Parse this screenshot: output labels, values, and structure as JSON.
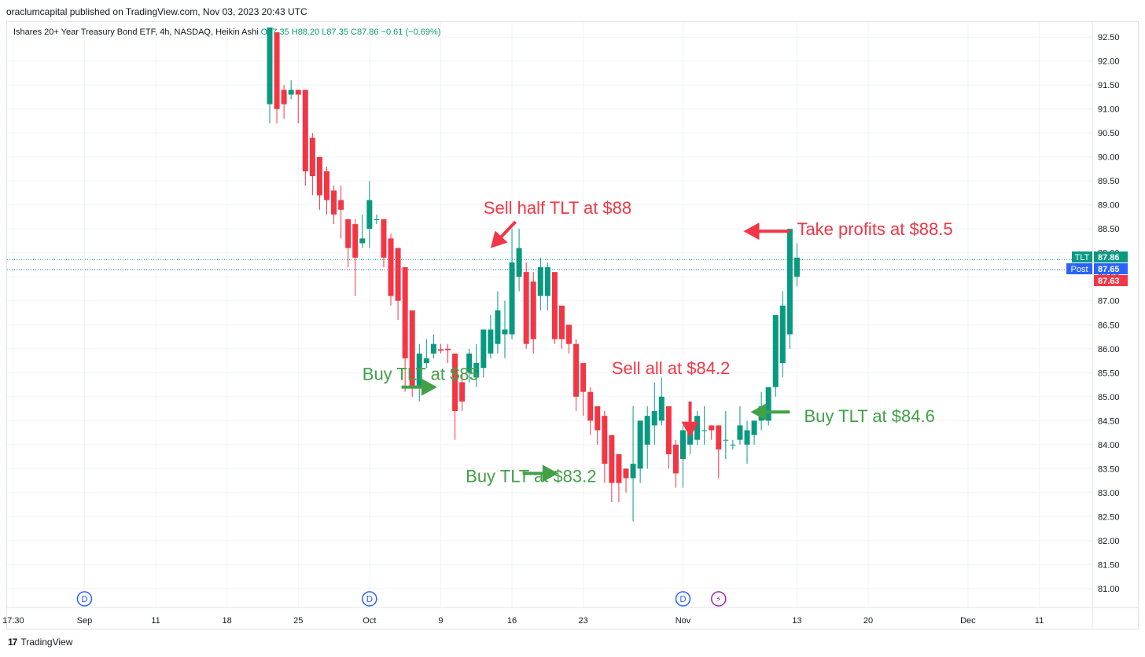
{
  "publisher_line": "oraclumcapital published on TradingView.com, Nov 03, 2023 20:43 UTC",
  "symbol": {
    "name": "Ishares 20+ Year Treasury Bond ETF, 4h, NASDAQ, Heikin Ashi",
    "open": "O87.35",
    "high": "H88.20",
    "low": "L87.35",
    "close": "C87.86",
    "change": "−0.61 (−0.69%)"
  },
  "footer": {
    "logo_mark": "17",
    "brand": "TradingView"
  },
  "colors": {
    "up": "#089981",
    "down": "#f23645",
    "buy_note": "#43a047",
    "sell_note": "#f23645",
    "last_price": "#089981",
    "post_market": "#2962ff"
  },
  "chart_data": {
    "type": "candlestick",
    "style": "Heikin Ashi",
    "interval": "4h",
    "ylim": [
      80.8,
      92.7
    ],
    "y_ticks": [
      "81.00",
      "81.50",
      "82.00",
      "82.50",
      "83.00",
      "83.50",
      "84.00",
      "84.50",
      "85.00",
      "85.50",
      "86.00",
      "86.50",
      "87.00",
      "87.50",
      "88.00",
      "88.50",
      "89.00",
      "89.50",
      "90.00",
      "90.50",
      "91.00",
      "91.50",
      "92.00",
      "92.50"
    ],
    "x_ticks": [
      {
        "label": "17:30",
        "slot": -36
      },
      {
        "label": "Sep",
        "slot": -26
      },
      {
        "label": "11",
        "slot": -16
      },
      {
        "label": "18",
        "slot": -6
      },
      {
        "label": "25",
        "slot": 4
      },
      {
        "label": "Oct",
        "slot": 14
      },
      {
        "label": "9",
        "slot": 24
      },
      {
        "label": "16",
        "slot": 34
      },
      {
        "label": "23",
        "slot": 44
      },
      {
        "label": "Nov",
        "slot": 58
      },
      {
        "label": "13",
        "slot": 74
      },
      {
        "label": "20",
        "slot": 84
      },
      {
        "label": "Dec",
        "slot": 98
      },
      {
        "label": "11",
        "slot": 108
      }
    ],
    "events": [
      {
        "symbol": "D",
        "slot": -26,
        "kind": "dividend"
      },
      {
        "symbol": "D",
        "slot": 14,
        "kind": "dividend"
      },
      {
        "symbol": "D",
        "slot": 58,
        "kind": "dividend"
      },
      {
        "symbol": "⚡",
        "slot": 63,
        "kind": "earnings"
      }
    ],
    "candles": [
      {
        "o": 91.1,
        "h": 92.7,
        "l": 90.7,
        "c": 92.7
      },
      {
        "o": 92.6,
        "h": 92.6,
        "l": 90.7,
        "c": 91.0
      },
      {
        "o": 91.4,
        "h": 91.5,
        "l": 90.8,
        "c": 91.1
      },
      {
        "o": 91.3,
        "h": 91.6,
        "l": 91.2,
        "c": 91.4
      },
      {
        "o": 91.4,
        "h": 91.4,
        "l": 90.7,
        "c": 91.3
      },
      {
        "o": 91.4,
        "h": 91.4,
        "l": 89.4,
        "c": 89.7
      },
      {
        "o": 90.4,
        "h": 90.5,
        "l": 89.2,
        "c": 89.6
      },
      {
        "o": 90.0,
        "h": 90.0,
        "l": 88.9,
        "c": 89.2
      },
      {
        "o": 89.7,
        "h": 89.8,
        "l": 88.8,
        "c": 89.1
      },
      {
        "o": 89.3,
        "h": 89.4,
        "l": 88.6,
        "c": 88.8
      },
      {
        "o": 89.1,
        "h": 89.4,
        "l": 88.3,
        "c": 88.9
      },
      {
        "o": 88.7,
        "h": 88.7,
        "l": 87.7,
        "c": 88.1
      },
      {
        "o": 88.6,
        "h": 88.7,
        "l": 87.1,
        "c": 87.9
      },
      {
        "o": 88.2,
        "h": 88.8,
        "l": 88.1,
        "c": 88.3
      },
      {
        "o": 88.5,
        "h": 89.5,
        "l": 88.1,
        "c": 89.1
      },
      {
        "o": 88.7,
        "h": 88.8,
        "l": 88.6,
        "c": 88.7
      },
      {
        "o": 88.7,
        "h": 88.7,
        "l": 87.7,
        "c": 87.9
      },
      {
        "o": 88.3,
        "h": 88.4,
        "l": 86.9,
        "c": 87.1
      },
      {
        "o": 88.1,
        "h": 88.1,
        "l": 86.6,
        "c": 87.0
      },
      {
        "o": 87.7,
        "h": 87.7,
        "l": 85.1,
        "c": 85.8
      },
      {
        "o": 86.8,
        "h": 86.8,
        "l": 85.0,
        "c": 85.2
      },
      {
        "o": 85.2,
        "h": 86.1,
        "l": 84.9,
        "c": 85.9
      },
      {
        "o": 85.7,
        "h": 86.2,
        "l": 85.6,
        "c": 85.8
      },
      {
        "o": 85.9,
        "h": 86.3,
        "l": 85.8,
        "c": 86.1
      },
      {
        "o": 85.99,
        "h": 86.1,
        "l": 85.9,
        "c": 85.96
      },
      {
        "o": 86.0,
        "h": 86.1,
        "l": 85.7,
        "c": 85.97
      },
      {
        "o": 85.9,
        "h": 85.9,
        "l": 84.1,
        "c": 84.7
      },
      {
        "o": 85.3,
        "h": 85.5,
        "l": 84.7,
        "c": 84.9
      },
      {
        "o": 85.5,
        "h": 86.0,
        "l": 85.3,
        "c": 85.9
      },
      {
        "o": 85.4,
        "h": 86.1,
        "l": 85.2,
        "c": 85.7
      },
      {
        "o": 85.6,
        "h": 86.4,
        "l": 85.4,
        "c": 86.4
      },
      {
        "o": 85.9,
        "h": 86.7,
        "l": 85.8,
        "c": 86.4
      },
      {
        "o": 86.1,
        "h": 87.2,
        "l": 85.9,
        "c": 86.8
      },
      {
        "o": 86.3,
        "h": 87.0,
        "l": 85.8,
        "c": 86.4
      },
      {
        "o": 86.3,
        "h": 88.5,
        "l": 86.2,
        "c": 87.8
      },
      {
        "o": 87.5,
        "h": 88.5,
        "l": 87.2,
        "c": 88.1
      },
      {
        "o": 87.6,
        "h": 87.8,
        "l": 86.0,
        "c": 86.1
      },
      {
        "o": 87.4,
        "h": 87.6,
        "l": 85.9,
        "c": 86.2
      },
      {
        "o": 87.1,
        "h": 87.9,
        "l": 86.8,
        "c": 87.7
      },
      {
        "o": 87.1,
        "h": 87.8,
        "l": 86.8,
        "c": 87.7
      },
      {
        "o": 87.6,
        "h": 87.6,
        "l": 86.1,
        "c": 86.2
      },
      {
        "o": 86.9,
        "h": 86.9,
        "l": 86.0,
        "c": 86.2
      },
      {
        "o": 86.5,
        "h": 86.5,
        "l": 85.9,
        "c": 86.1
      },
      {
        "o": 86.1,
        "h": 86.2,
        "l": 84.7,
        "c": 85.0
      },
      {
        "o": 85.7,
        "h": 85.7,
        "l": 84.6,
        "c": 85.1
      },
      {
        "o": 85.1,
        "h": 85.2,
        "l": 84.2,
        "c": 84.5
      },
      {
        "o": 84.8,
        "h": 84.8,
        "l": 84.0,
        "c": 84.3
      },
      {
        "o": 84.6,
        "h": 84.7,
        "l": 83.2,
        "c": 83.6
      },
      {
        "o": 84.2,
        "h": 84.2,
        "l": 82.8,
        "c": 83.2
      },
      {
        "o": 83.8,
        "h": 83.8,
        "l": 82.8,
        "c": 83.2
      },
      {
        "o": 83.5,
        "h": 83.5,
        "l": 83.0,
        "c": 83.3
      },
      {
        "o": 83.3,
        "h": 84.8,
        "l": 82.4,
        "c": 83.6
      },
      {
        "o": 83.5,
        "h": 84.5,
        "l": 83.2,
        "c": 84.5
      },
      {
        "o": 84.0,
        "h": 84.8,
        "l": 83.5,
        "c": 84.6
      },
      {
        "o": 84.4,
        "h": 85.3,
        "l": 84.0,
        "c": 84.7
      },
      {
        "o": 84.5,
        "h": 85.4,
        "l": 84.4,
        "c": 85.0
      },
      {
        "o": 84.8,
        "h": 84.8,
        "l": 83.5,
        "c": 83.8
      },
      {
        "o": 84.0,
        "h": 84.1,
        "l": 83.1,
        "c": 83.4
      },
      {
        "o": 83.7,
        "h": 84.4,
        "l": 83.1,
        "c": 84.3
      },
      {
        "o": 84.0,
        "h": 84.7,
        "l": 83.8,
        "c": 84.3
      },
      {
        "o": 84.1,
        "h": 84.7,
        "l": 84.0,
        "c": 84.6
      },
      {
        "o": 84.3,
        "h": 84.8,
        "l": 84.0,
        "c": 84.3
      },
      {
        "o": 84.4,
        "h": 84.4,
        "l": 84.1,
        "c": 84.3
      },
      {
        "o": 84.4,
        "h": 84.4,
        "l": 83.3,
        "c": 83.9
      },
      {
        "o": 84.1,
        "h": 84.7,
        "l": 83.7,
        "c": 84.1
      },
      {
        "o": 84.0,
        "h": 84.1,
        "l": 83.9,
        "c": 84.0
      },
      {
        "o": 84.1,
        "h": 84.8,
        "l": 84.0,
        "c": 84.4
      },
      {
        "o": 84.0,
        "h": 84.5,
        "l": 83.6,
        "c": 84.3
      },
      {
        "o": 84.2,
        "h": 84.5,
        "l": 84.0,
        "c": 84.5
      },
      {
        "o": 84.5,
        "h": 85.1,
        "l": 84.3,
        "c": 84.8
      },
      {
        "o": 84.5,
        "h": 85.2,
        "l": 84.4,
        "c": 85.2
      },
      {
        "o": 85.2,
        "h": 86.7,
        "l": 85.0,
        "c": 86.7
      },
      {
        "o": 85.7,
        "h": 87.2,
        "l": 85.4,
        "c": 86.9
      },
      {
        "o": 86.3,
        "h": 88.5,
        "l": 86.0,
        "c": 88.5
      },
      {
        "o": 87.5,
        "h": 88.2,
        "l": 87.3,
        "c": 87.9
      }
    ],
    "price_lines": [
      {
        "label": "TLT",
        "value": "87.86",
        "price": 87.86,
        "color": "#089981",
        "style": "dotted"
      },
      {
        "label": "Post",
        "value": "87.65",
        "price": 87.65,
        "color": "#2962ff",
        "style": "dotted"
      },
      {
        "label": "",
        "value": "87.63",
        "price": 87.63,
        "color": "#f23645",
        "style": "none"
      }
    ],
    "annotations": [
      {
        "text": "Sell half TLT at $88",
        "kind": "sell",
        "text_slot": 30,
        "text_price": 88.95,
        "arrow_from_slot": 34.5,
        "arrow_from_price": 88.65,
        "arrow_to_slot": 31,
        "arrow_to_price": 88.1
      },
      {
        "text": "Take profits at $88.5",
        "kind": "sell",
        "text_slot": 74,
        "text_price": 88.5,
        "arrow_from_slot": 73,
        "arrow_from_price": 88.45,
        "arrow_to_slot": 66.5,
        "arrow_to_price": 88.45
      },
      {
        "text": "Sell all at $84.2",
        "kind": "sell",
        "text_slot": 48,
        "text_price": 85.6,
        "arrow_from_slot": 59,
        "arrow_from_price": 84.9,
        "arrow_to_slot": 59,
        "arrow_to_price": 84.15
      },
      {
        "text": "Buy TLT at $85",
        "kind": "buy",
        "text_slot": 13,
        "text_price": 85.48,
        "arrow_from_slot": 18.5,
        "arrow_from_price": 85.2,
        "arrow_to_slot": 23.5,
        "arrow_to_price": 85.2
      },
      {
        "text": "Buy TLT at $84.6",
        "kind": "buy",
        "text_slot": 75,
        "text_price": 84.6,
        "arrow_from_slot": 73,
        "arrow_from_price": 84.68,
        "arrow_to_slot": 67.5,
        "arrow_to_price": 84.68
      },
      {
        "text": "Buy TLT at $83.2",
        "kind": "buy",
        "text_slot": 27.5,
        "text_price": 83.35,
        "arrow_from_slot": 35.5,
        "arrow_from_price": 83.4,
        "arrow_to_slot": 40.5,
        "arrow_to_price": 83.4
      }
    ]
  }
}
